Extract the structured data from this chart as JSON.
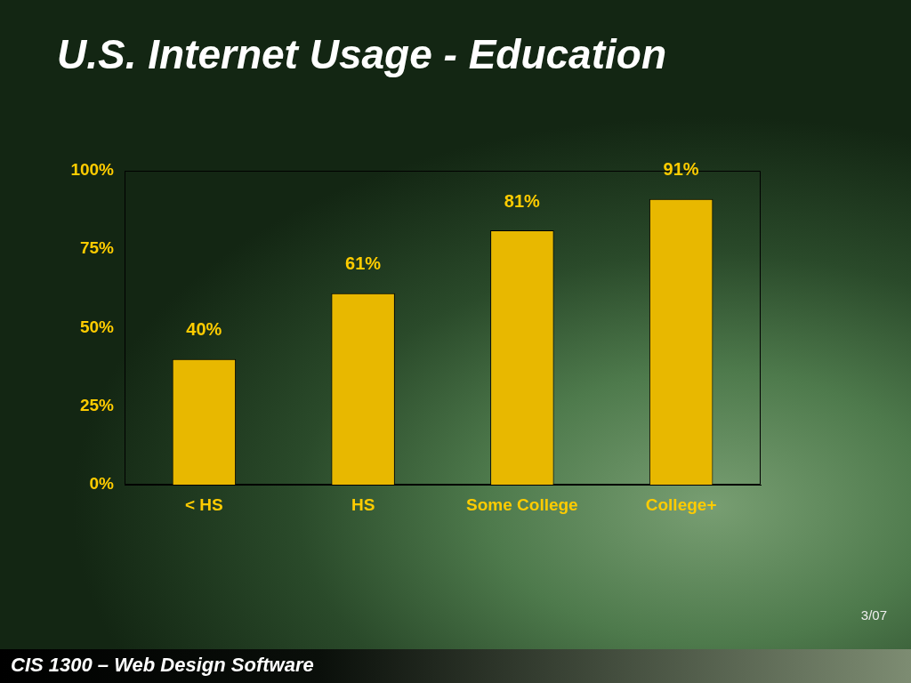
{
  "chart_data": {
    "type": "bar",
    "title": "U.S. Internet Usage - Education",
    "categories": [
      "< HS",
      "HS",
      "Some College",
      "College+"
    ],
    "values": [
      40,
      61,
      81,
      91
    ],
    "value_labels": [
      "40%",
      "61%",
      "81%",
      "91%"
    ],
    "color": "#e8b800",
    "ylim": [
      0,
      100
    ],
    "yticks": [
      {
        "value": 0,
        "label": "0%"
      },
      {
        "value": 25,
        "label": "25%"
      },
      {
        "value": 50,
        "label": "50%"
      },
      {
        "value": 75,
        "label": "75%"
      },
      {
        "value": 100,
        "label": "100%"
      }
    ],
    "grid": false,
    "legend": false,
    "annotations": [
      "3/07",
      "CIS 1300 – Web Design Software"
    ]
  }
}
